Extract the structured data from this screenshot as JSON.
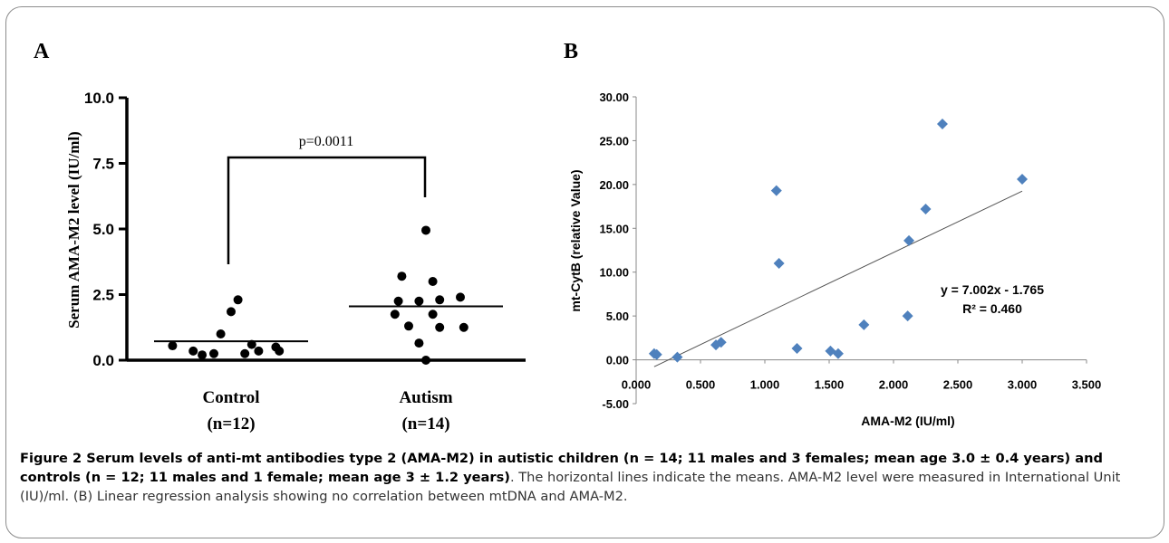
{
  "figure": {
    "caption_bold": "Figure 2 Serum levels of anti-mt antibodies type 2 (AMA-M2) in autistic children (n = 14; 11 males and 3 females; mean age 3.0 ± 0.4 years) and controls (n = 12; 11 males and 1 female; mean age 3 ± 1.2 years)",
    "caption_rest": ". The horizontal lines indicate the means. AMA-M2 level were measured in International Unit (IU)/ml. (B) Linear regression analysis showing no correlation between mtDNA and AMA-M2."
  },
  "chart_data": [
    {
      "panel_label": "A",
      "type": "scatter",
      "ylabel": "Serum AMA-M2 level (IU/ml)",
      "ylim": [
        0,
        10
      ],
      "yticks": [
        "0.0",
        "2.5",
        "5.0",
        "7.5",
        "10.0"
      ],
      "categories": [
        {
          "name": "Control",
          "n_label": "(n=12)"
        },
        {
          "name": "Autism",
          "n_label": "(n=14)"
        }
      ],
      "significance": "p=0.0011",
      "means": [
        0.72,
        2.05
      ],
      "series": [
        {
          "category": "Control",
          "x_offsets": [
            -0.85,
            -0.55,
            -0.42,
            -0.15,
            0.1,
            0.4,
            0.7,
            -0.25,
            0.2,
            0.0,
            0.3,
            0.65
          ],
          "values": [
            0.55,
            0.35,
            0.2,
            1.0,
            2.3,
            0.35,
            0.35,
            0.25,
            0.25,
            1.85,
            0.6,
            0.5
          ]
        },
        {
          "category": "Autism",
          "x_offsets": [
            0.0,
            -0.35,
            0.1,
            -0.4,
            -0.1,
            0.2,
            0.5,
            -0.45,
            0.1,
            0.55,
            -0.25,
            0.2,
            -0.1,
            0.0
          ],
          "values": [
            4.95,
            3.2,
            3.0,
            2.25,
            2.25,
            2.3,
            2.4,
            1.75,
            1.75,
            1.25,
            1.3,
            1.25,
            0.65,
            0.0
          ]
        }
      ]
    },
    {
      "panel_label": "B",
      "type": "scatter",
      "xlabel": "AMA-M2 (IU/ml)",
      "ylabel": "mt-CytB (relative Value)",
      "xlim": [
        0,
        3.5
      ],
      "ylim": [
        -5,
        30
      ],
      "xticks": [
        "0.000",
        "0.500",
        "1.000",
        "1.500",
        "2.000",
        "2.500",
        "3.000",
        "3.500"
      ],
      "yticks": [
        "-5.00",
        "0.00",
        "5.00",
        "10.00",
        "15.00",
        "20.00",
        "25.00",
        "30.00"
      ],
      "marker_color": "#4f81bd",
      "x": [
        0.14,
        0.16,
        0.32,
        0.62,
        0.66,
        1.09,
        1.11,
        1.25,
        1.51,
        1.57,
        1.77,
        2.11,
        2.12,
        2.25,
        2.38,
        3.0
      ],
      "y": [
        0.7,
        0.6,
        0.3,
        1.7,
        2.0,
        19.3,
        11.0,
        1.3,
        1.0,
        0.7,
        4.0,
        5.0,
        13.6,
        17.2,
        26.9,
        20.6
      ],
      "trendline": {
        "slope": 7.002,
        "intercept": -1.765,
        "x_range": [
          0.14,
          3.0
        ],
        "color": "#555555"
      },
      "equation": "y = 7.002x - 1.765",
      "r_squared_label": "R² = 0.460"
    }
  ]
}
